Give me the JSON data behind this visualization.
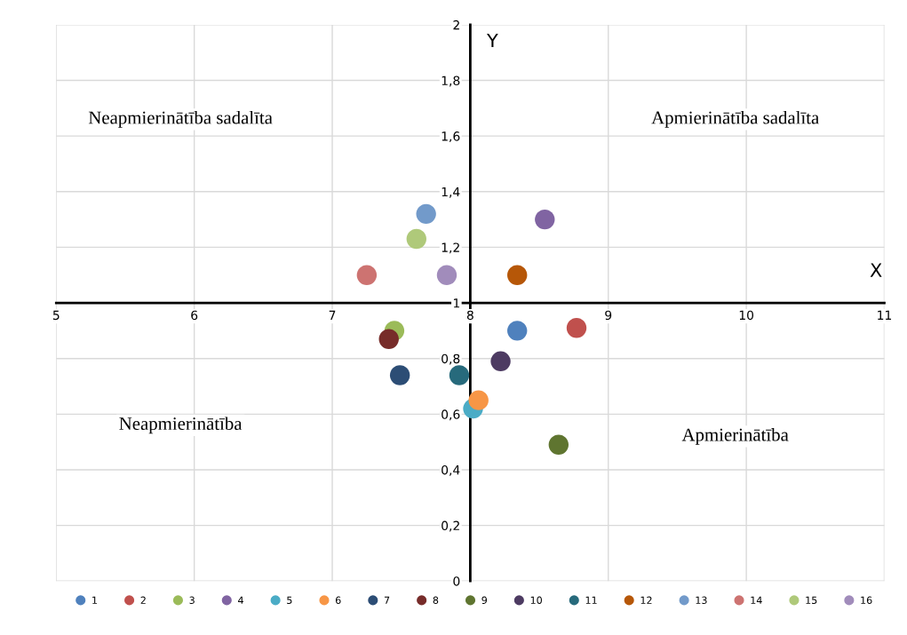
{
  "chart_data": {
    "type": "scatter",
    "xlabel": "X",
    "ylabel": "Y",
    "xlim": [
      5,
      11
    ],
    "xticks": [
      5,
      6,
      7,
      8,
      9,
      10,
      11
    ],
    "ylim": [
      0,
      2
    ],
    "yticks": [
      0,
      {
        "value": 0.2,
        "label": "0,2"
      },
      {
        "value": 0.4,
        "label": "0,4"
      },
      {
        "value": 0.6,
        "label": "0,6"
      },
      {
        "value": 0.8,
        "label": "0,8"
      },
      1,
      {
        "value": 1.2,
        "label": "1,2"
      },
      {
        "value": 1.4,
        "label": "1,4"
      },
      {
        "value": 1.6,
        "label": "1,6"
      },
      {
        "value": 1.8,
        "label": "1,8"
      },
      2
    ],
    "grid": true,
    "legend": "bottom",
    "marker": "circle",
    "annotations": [
      "Neapmierinātība sadalīta",
      "Apmierinātība sadalīta",
      "Neapmierinātība",
      "Apmierinātība"
    ],
    "series": [
      {
        "name": "1",
        "color": "#4f81bd",
        "x": [
          8.34
        ],
        "values": [
          0.9
        ]
      },
      {
        "name": "2",
        "color": "#c0504d",
        "x": [
          8.77
        ],
        "values": [
          0.91
        ]
      },
      {
        "name": "3",
        "color": "#9bbb59",
        "x": [
          7.45
        ],
        "values": [
          0.9
        ]
      },
      {
        "name": "4",
        "color": "#8064a2",
        "x": [
          8.54
        ],
        "values": [
          1.3
        ]
      },
      {
        "name": "5",
        "color": "#4bacc6",
        "x": [
          8.02
        ],
        "values": [
          0.62
        ]
      },
      {
        "name": "6",
        "color": "#f79646",
        "x": [
          8.06
        ],
        "values": [
          0.65
        ]
      },
      {
        "name": "7",
        "color": "#2c4d75",
        "x": [
          7.49
        ],
        "values": [
          0.74
        ]
      },
      {
        "name": "8",
        "color": "#772c2a",
        "x": [
          7.41
        ],
        "values": [
          0.87
        ]
      },
      {
        "name": "9",
        "color": "#5f7530",
        "x": [
          8.64
        ],
        "values": [
          0.49
        ]
      },
      {
        "name": "10",
        "color": "#4d3b62",
        "x": [
          8.22
        ],
        "values": [
          0.79
        ]
      },
      {
        "name": "11",
        "color": "#276a7c",
        "x": [
          7.92
        ],
        "values": [
          0.74
        ]
      },
      {
        "name": "12",
        "color": "#b65708",
        "x": [
          8.34
        ],
        "values": [
          1.1
        ]
      },
      {
        "name": "13",
        "color": "#729aca",
        "x": [
          7.68
        ],
        "values": [
          1.32
        ]
      },
      {
        "name": "14",
        "color": "#cd7371",
        "x": [
          7.25
        ],
        "values": [
          1.1
        ]
      },
      {
        "name": "15",
        "color": "#afc97a",
        "x": [
          7.61
        ],
        "values": [
          1.23
        ]
      },
      {
        "name": "16",
        "color": "#a18cbb",
        "x": [
          7.83
        ],
        "values": [
          1.1
        ]
      }
    ]
  }
}
